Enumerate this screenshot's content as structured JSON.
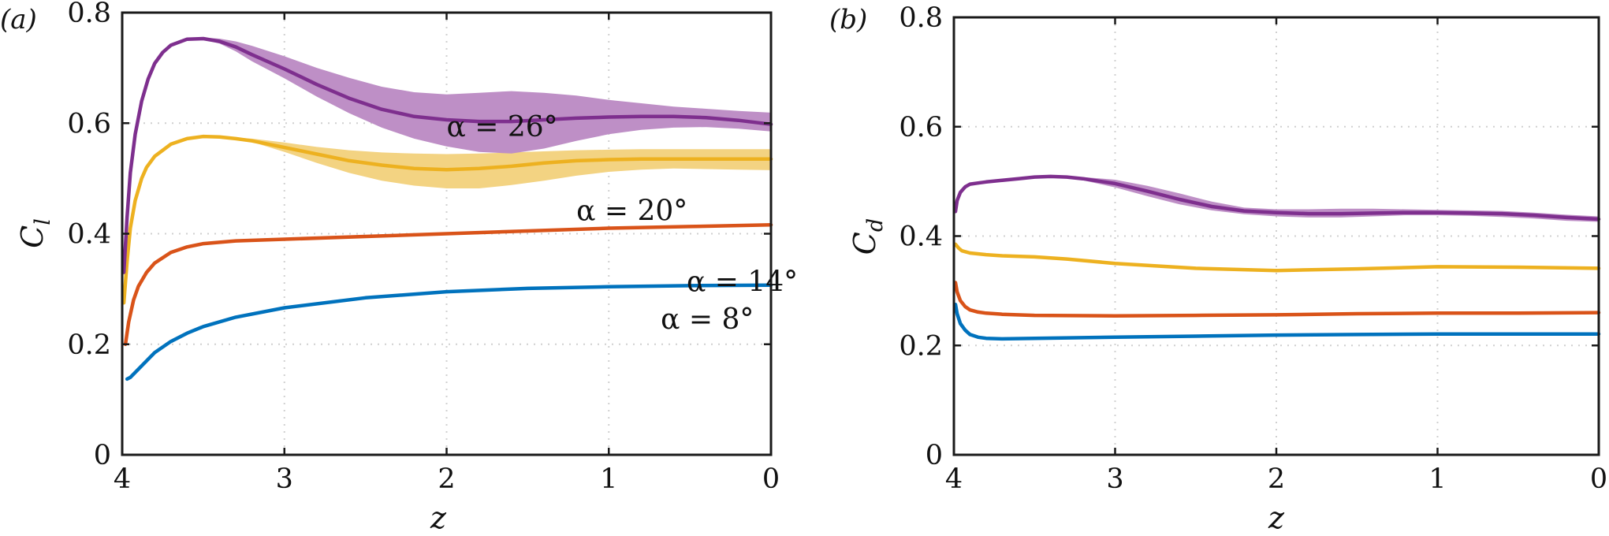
{
  "colors": {
    "blue": "#0072BD",
    "orange": "#D95319",
    "yellow": "#EDB120",
    "purple": "#7E2F8E",
    "yellow_band": "#F3D382",
    "purple_band": "#BE8FC6"
  },
  "chart_data": [
    {
      "type": "line",
      "panel_label": "(a)",
      "xlabel": "z",
      "ylabel_main": "C",
      "ylabel_sub": "l",
      "xlim": [
        4,
        0
      ],
      "ylim": [
        0,
        0.8
      ],
      "xticks": [
        4,
        3,
        2,
        1,
        0
      ],
      "xtick_labels": [
        "4",
        "3",
        "2",
        "1",
        "0"
      ],
      "yticks": [
        0,
        0.2,
        0.4,
        0.6,
        0.8
      ],
      "ytick_labels": [
        "0",
        "0.2",
        "0.4",
        "0.6",
        "0.8"
      ],
      "grid": true,
      "series": [
        {
          "name": "α = 8°",
          "label": "α = 8°",
          "label_pos": [
            0.83,
            0.285
          ],
          "color_key": "blue",
          "x": [
            3.97,
            3.95,
            3.9,
            3.85,
            3.8,
            3.7,
            3.6,
            3.5,
            3.3,
            3.0,
            2.5,
            2.0,
            1.5,
            1.0,
            0.5,
            0.0
          ],
          "y": [
            0.137,
            0.14,
            0.155,
            0.17,
            0.185,
            0.205,
            0.22,
            0.232,
            0.249,
            0.266,
            0.284,
            0.295,
            0.301,
            0.304,
            0.306,
            0.307
          ]
        },
        {
          "name": "α = 14°",
          "label": "α = 14°",
          "label_pos": [
            0.87,
            0.37
          ],
          "color_key": "orange",
          "x": [
            3.98,
            3.96,
            3.93,
            3.9,
            3.85,
            3.8,
            3.7,
            3.6,
            3.5,
            3.3,
            3.0,
            2.5,
            2.0,
            1.5,
            1.0,
            0.5,
            0.0
          ],
          "y": [
            0.2,
            0.24,
            0.28,
            0.305,
            0.33,
            0.347,
            0.366,
            0.376,
            0.382,
            0.387,
            0.39,
            0.395,
            0.4,
            0.405,
            0.41,
            0.413,
            0.416
          ]
        },
        {
          "name": "α = 20°",
          "label": "α = 20°",
          "label_pos": [
            0.7,
            0.53
          ],
          "color_key": "yellow",
          "band_key": "yellow_band",
          "x": [
            3.99,
            3.97,
            3.95,
            3.92,
            3.88,
            3.85,
            3.8,
            3.7,
            3.6,
            3.5,
            3.4,
            3.3,
            3.2,
            3.0,
            2.8,
            2.6,
            2.4,
            2.2,
            2.0,
            1.8,
            1.6,
            1.4,
            1.2,
            1.0,
            0.8,
            0.6,
            0.4,
            0.2,
            0.0
          ],
          "y": [
            0.275,
            0.35,
            0.41,
            0.46,
            0.5,
            0.52,
            0.54,
            0.562,
            0.572,
            0.576,
            0.575,
            0.572,
            0.568,
            0.556,
            0.544,
            0.532,
            0.524,
            0.518,
            0.516,
            0.518,
            0.522,
            0.528,
            0.532,
            0.534,
            0.535,
            0.535,
            0.535,
            0.535,
            0.535
          ],
          "lower": [
            0.275,
            0.35,
            0.41,
            0.46,
            0.5,
            0.52,
            0.54,
            0.562,
            0.572,
            0.576,
            0.575,
            0.572,
            0.566,
            0.548,
            0.528,
            0.51,
            0.496,
            0.487,
            0.482,
            0.482,
            0.488,
            0.496,
            0.505,
            0.512,
            0.516,
            0.518,
            0.517,
            0.516,
            0.515
          ],
          "upper": [
            0.275,
            0.35,
            0.41,
            0.46,
            0.5,
            0.52,
            0.54,
            0.562,
            0.572,
            0.576,
            0.575,
            0.574,
            0.572,
            0.565,
            0.557,
            0.551,
            0.547,
            0.545,
            0.544,
            0.545,
            0.547,
            0.549,
            0.551,
            0.552,
            0.553,
            0.553,
            0.553,
            0.553,
            0.553
          ]
        },
        {
          "name": "α = 26°",
          "label": "α = 26°",
          "label_pos": [
            0.5,
            0.72
          ],
          "color_key": "purple",
          "band_key": "purple_band",
          "x": [
            3.99,
            3.97,
            3.95,
            3.92,
            3.88,
            3.84,
            3.8,
            3.75,
            3.7,
            3.6,
            3.5,
            3.4,
            3.3,
            3.2,
            3.0,
            2.8,
            2.6,
            2.4,
            2.2,
            2.0,
            1.8,
            1.6,
            1.4,
            1.2,
            1.0,
            0.8,
            0.6,
            0.4,
            0.2,
            0.0
          ],
          "y": [
            0.33,
            0.43,
            0.51,
            0.58,
            0.64,
            0.68,
            0.708,
            0.728,
            0.741,
            0.752,
            0.753,
            0.748,
            0.738,
            0.724,
            0.698,
            0.67,
            0.645,
            0.625,
            0.612,
            0.606,
            0.603,
            0.603,
            0.606,
            0.609,
            0.611,
            0.612,
            0.612,
            0.61,
            0.605,
            0.598
          ],
          "lower": [
            0.33,
            0.43,
            0.51,
            0.58,
            0.64,
            0.68,
            0.708,
            0.728,
            0.741,
            0.752,
            0.751,
            0.744,
            0.73,
            0.712,
            0.681,
            0.648,
            0.618,
            0.592,
            0.572,
            0.558,
            0.548,
            0.545,
            0.554,
            0.568,
            0.58,
            0.588,
            0.592,
            0.593,
            0.59,
            0.585
          ],
          "upper": [
            0.33,
            0.43,
            0.51,
            0.58,
            0.64,
            0.68,
            0.708,
            0.728,
            0.741,
            0.753,
            0.755,
            0.753,
            0.748,
            0.74,
            0.721,
            0.7,
            0.682,
            0.666,
            0.656,
            0.652,
            0.655,
            0.658,
            0.655,
            0.65,
            0.642,
            0.636,
            0.63,
            0.626,
            0.622,
            0.619
          ]
        }
      ]
    },
    {
      "type": "line",
      "panel_label": "(b)",
      "xlabel": "z",
      "ylabel_main": "C",
      "ylabel_sub": "d",
      "xlim": [
        4,
        0
      ],
      "ylim": [
        0,
        0.8
      ],
      "xticks": [
        4,
        3,
        2,
        1,
        0
      ],
      "xtick_labels": [
        "4",
        "3",
        "2",
        "1",
        "0"
      ],
      "yticks": [
        0,
        0.2,
        0.4,
        0.6,
        0.8
      ],
      "ytick_labels": [
        "0",
        "0.2",
        "0.4",
        "0.6",
        "0.8"
      ],
      "grid": true,
      "series": [
        {
          "name": "α = 8°",
          "color_key": "blue",
          "x": [
            3.99,
            3.98,
            3.96,
            3.93,
            3.9,
            3.85,
            3.8,
            3.7,
            3.5,
            3.0,
            2.5,
            2.0,
            1.5,
            1.0,
            0.5,
            0.0
          ],
          "y": [
            0.275,
            0.258,
            0.24,
            0.228,
            0.22,
            0.215,
            0.213,
            0.212,
            0.213,
            0.215,
            0.217,
            0.219,
            0.22,
            0.221,
            0.221,
            0.221
          ]
        },
        {
          "name": "α = 14°",
          "color_key": "orange",
          "x": [
            3.99,
            3.98,
            3.96,
            3.93,
            3.9,
            3.85,
            3.8,
            3.7,
            3.5,
            3.0,
            2.5,
            2.0,
            1.5,
            1.0,
            0.5,
            0.0
          ],
          "y": [
            0.315,
            0.298,
            0.282,
            0.271,
            0.265,
            0.261,
            0.259,
            0.257,
            0.255,
            0.254,
            0.255,
            0.256,
            0.258,
            0.259,
            0.259,
            0.26
          ]
        },
        {
          "name": "α = 20°",
          "color_key": "yellow",
          "x": [
            3.99,
            3.97,
            3.95,
            3.9,
            3.8,
            3.7,
            3.5,
            3.3,
            3.0,
            2.5,
            2.0,
            1.5,
            1.0,
            0.5,
            0.0
          ],
          "y": [
            0.385,
            0.378,
            0.373,
            0.369,
            0.366,
            0.364,
            0.362,
            0.358,
            0.35,
            0.341,
            0.337,
            0.34,
            0.344,
            0.343,
            0.341
          ]
        },
        {
          "name": "α = 26°",
          "color_key": "purple",
          "band_key": "purple_band",
          "x": [
            3.99,
            3.98,
            3.96,
            3.93,
            3.9,
            3.85,
            3.8,
            3.7,
            3.6,
            3.5,
            3.4,
            3.3,
            3.2,
            3.0,
            2.8,
            2.6,
            2.4,
            2.2,
            2.0,
            1.8,
            1.6,
            1.4,
            1.2,
            1.0,
            0.8,
            0.6,
            0.4,
            0.2,
            0.0
          ],
          "y": [
            0.445,
            0.465,
            0.48,
            0.49,
            0.495,
            0.497,
            0.499,
            0.502,
            0.505,
            0.508,
            0.509,
            0.508,
            0.505,
            0.496,
            0.482,
            0.467,
            0.454,
            0.446,
            0.443,
            0.441,
            0.441,
            0.442,
            0.443,
            0.443,
            0.442,
            0.441,
            0.438,
            0.434,
            0.431
          ],
          "lower": [
            0.445,
            0.465,
            0.48,
            0.49,
            0.495,
            0.497,
            0.499,
            0.502,
            0.505,
            0.508,
            0.509,
            0.507,
            0.502,
            0.489,
            0.473,
            0.458,
            0.447,
            0.44,
            0.436,
            0.434,
            0.434,
            0.436,
            0.438,
            0.438,
            0.437,
            0.435,
            0.432,
            0.428,
            0.426
          ],
          "upper": [
            0.445,
            0.465,
            0.48,
            0.49,
            0.495,
            0.497,
            0.499,
            0.502,
            0.505,
            0.508,
            0.509,
            0.51,
            0.508,
            0.503,
            0.492,
            0.478,
            0.463,
            0.452,
            0.449,
            0.449,
            0.45,
            0.45,
            0.449,
            0.448,
            0.447,
            0.446,
            0.443,
            0.439,
            0.436
          ]
        }
      ]
    }
  ]
}
